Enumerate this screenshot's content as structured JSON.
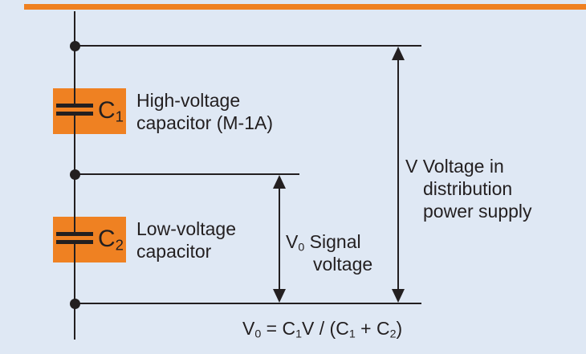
{
  "colors": {
    "background": "#dfe8f4",
    "accent": "#ef8122",
    "ink": "#231f20"
  },
  "capacitor1": {
    "symbol": "C",
    "subscript": "1",
    "desc_line1": "High-voltage",
    "desc_line2": "capacitor (M-1A)"
  },
  "capacitor2": {
    "symbol": "C",
    "subscript": "2",
    "desc_line1": "Low-voltage",
    "desc_line2": "capacitor"
  },
  "signal_arrow_label": {
    "symbol": "V",
    "subscript": "0",
    "text": " Signal",
    "line2": "voltage"
  },
  "supply_arrow_label": {
    "line1": "V Voltage in",
    "line2": "distribution",
    "line3": "power supply"
  },
  "formula": {
    "p0": "V",
    "s0": "0",
    "p1": " = C",
    "s1": "1",
    "p2": "V / (C",
    "s2": "1",
    "p3": " + C",
    "s3": "2",
    "p4": ")"
  }
}
